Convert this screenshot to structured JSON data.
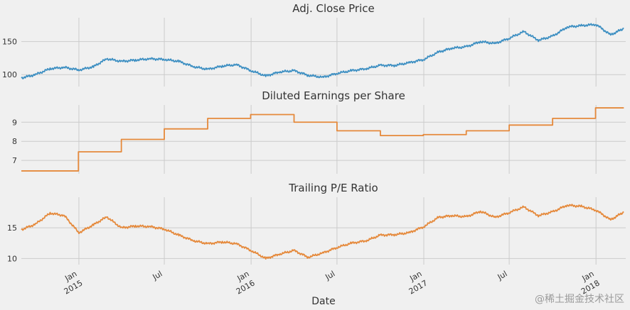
{
  "chart_data": [
    {
      "type": "line",
      "title": "Adj. Close Price",
      "xlabel": "",
      "ylabel": "",
      "ylim": [
        82,
        186
      ],
      "yticks": [
        100,
        150
      ],
      "grid": true,
      "series": [
        {
          "color": "#3d8fc2",
          "x": [
            "2014-09-01",
            "2014-10-01",
            "2014-11-01",
            "2014-12-01",
            "2015-01-01",
            "2015-02-01",
            "2015-03-01",
            "2015-04-01",
            "2015-05-01",
            "2015-06-01",
            "2015-07-01",
            "2015-08-01",
            "2015-09-01",
            "2015-10-01",
            "2015-11-01",
            "2015-12-01",
            "2016-01-01",
            "2016-02-01",
            "2016-03-01",
            "2016-04-01",
            "2016-05-01",
            "2016-06-01",
            "2016-07-01",
            "2016-08-01",
            "2016-09-01",
            "2016-10-01",
            "2016-11-01",
            "2016-12-01",
            "2017-01-01",
            "2017-02-01",
            "2017-03-01",
            "2017-04-01",
            "2017-05-01",
            "2017-06-01",
            "2017-07-01",
            "2017-08-01",
            "2017-09-01",
            "2017-10-01",
            "2017-11-01",
            "2017-12-01",
            "2018-01-01",
            "2018-02-01",
            "2018-03-01"
          ],
          "values": [
            95,
            100,
            109,
            111,
            107,
            112,
            124,
            120,
            122,
            124,
            123,
            120,
            112,
            108,
            113,
            115,
            106,
            98,
            104,
            106,
            99,
            96,
            102,
            106,
            109,
            114,
            114,
            118,
            123,
            134,
            140,
            142,
            150,
            147,
            155,
            165,
            152,
            158,
            172,
            174,
            176,
            160,
            170
          ]
        }
      ]
    },
    {
      "type": "line",
      "title": "Diluted Earnings per Share",
      "xlabel": "",
      "ylabel": "",
      "ylim": [
        6.3,
        9.9
      ],
      "yticks": [
        7,
        8,
        9
      ],
      "grid": true,
      "series": [
        {
          "color": "#e5893b",
          "step": true,
          "x": [
            "2014-09-01",
            "2014-12-31",
            "2015-04-01",
            "2015-07-01",
            "2015-10-01",
            "2015-12-31",
            "2016-04-01",
            "2016-07-01",
            "2016-10-01",
            "2016-12-31",
            "2017-04-01",
            "2017-07-01",
            "2017-10-01",
            "2017-12-31",
            "2018-03-01"
          ],
          "values": [
            6.45,
            7.45,
            8.1,
            8.65,
            9.2,
            9.4,
            9.0,
            8.55,
            8.3,
            8.35,
            8.55,
            8.85,
            9.2,
            9.75,
            9.75
          ]
        }
      ]
    },
    {
      "type": "line",
      "title": "Trailing P/E Ratio",
      "xlabel": "Date",
      "ylabel": "",
      "ylim": [
        9,
        20
      ],
      "yticks": [
        10,
        15
      ],
      "grid": true,
      "series": [
        {
          "color": "#e5893b",
          "x": [
            "2014-09-01",
            "2014-10-01",
            "2014-11-01",
            "2014-12-01",
            "2015-01-01",
            "2015-02-01",
            "2015-03-01",
            "2015-04-01",
            "2015-05-01",
            "2015-06-01",
            "2015-07-01",
            "2015-08-01",
            "2015-09-01",
            "2015-10-01",
            "2015-11-01",
            "2015-12-01",
            "2016-01-01",
            "2016-02-01",
            "2016-03-01",
            "2016-04-01",
            "2016-05-01",
            "2016-06-01",
            "2016-07-01",
            "2016-08-01",
            "2016-09-01",
            "2016-10-01",
            "2016-11-01",
            "2016-12-01",
            "2017-01-01",
            "2017-02-01",
            "2017-03-01",
            "2017-04-01",
            "2017-05-01",
            "2017-06-01",
            "2017-07-01",
            "2017-08-01",
            "2017-09-01",
            "2017-10-01",
            "2017-11-01",
            "2017-12-01",
            "2018-01-01",
            "2018-02-01",
            "2018-03-01"
          ],
          "values": [
            14.7,
            15.6,
            17.4,
            17.0,
            14.2,
            15.5,
            16.8,
            15.0,
            15.3,
            15.2,
            14.8,
            13.8,
            12.9,
            12.4,
            12.7,
            12.4,
            11.3,
            10.0,
            10.7,
            11.3,
            10.2,
            10.9,
            11.8,
            12.5,
            12.9,
            13.8,
            13.9,
            14.2,
            15.2,
            16.7,
            17.0,
            16.8,
            17.7,
            16.7,
            17.5,
            18.4,
            17.0,
            17.6,
            18.7,
            18.5,
            17.9,
            16.3,
            17.6
          ]
        }
      ]
    }
  ],
  "x_axis": {
    "ticks": [
      {
        "date": "2015-01-01",
        "label": "Jan",
        "sub": "2015"
      },
      {
        "date": "2015-07-01",
        "label": "Jul",
        "sub": ""
      },
      {
        "date": "2016-01-01",
        "label": "Jan",
        "sub": "2016"
      },
      {
        "date": "2016-07-01",
        "label": "Jul",
        "sub": ""
      },
      {
        "date": "2017-01-01",
        "label": "Jan",
        "sub": "2017"
      },
      {
        "date": "2017-07-01",
        "label": "Jul",
        "sub": ""
      },
      {
        "date": "2018-01-01",
        "label": "Jan",
        "sub": "2018"
      }
    ],
    "range": [
      "2014-09-01",
      "2018-03-05"
    ]
  },
  "watermark": "@稀土掘金技术社区"
}
